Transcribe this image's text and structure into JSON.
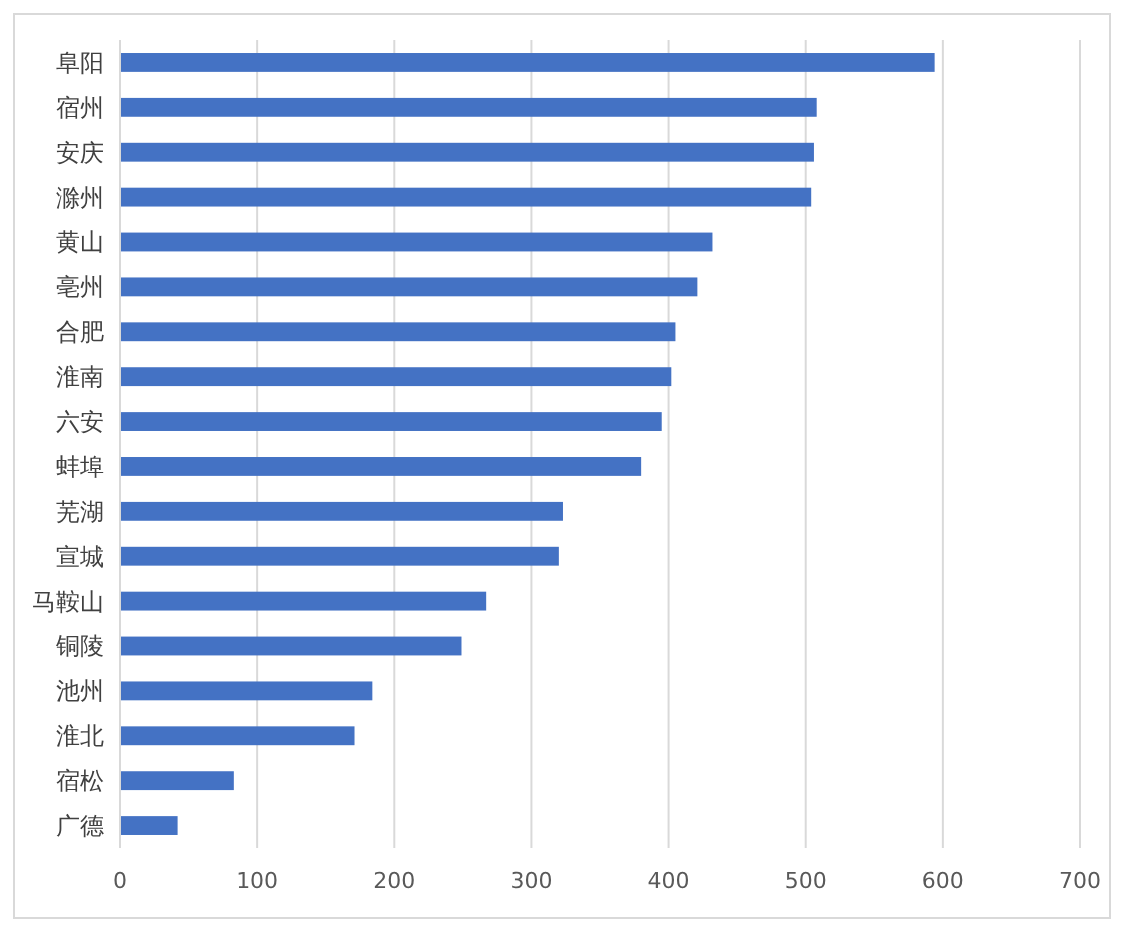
{
  "chart_data": {
    "type": "bar",
    "orientation": "horizontal",
    "categories": [
      "阜阳",
      "宿州",
      "安庆",
      "滁州",
      "黄山",
      "亳州",
      "合肥",
      "淮南",
      "六安",
      "蚌埠",
      "芜湖",
      "宣城",
      "马鞍山",
      "铜陵",
      "池州",
      "淮北",
      "宿松",
      "广德"
    ],
    "values": [
      594,
      508,
      506,
      504,
      432,
      421,
      405,
      402,
      395,
      380,
      323,
      320,
      267,
      249,
      184,
      171,
      83,
      42
    ],
    "color": "#4472c4",
    "xlim": [
      0,
      700
    ],
    "xticks": [
      0,
      100,
      200,
      300,
      400,
      500,
      600,
      700
    ],
    "grid": "x"
  }
}
